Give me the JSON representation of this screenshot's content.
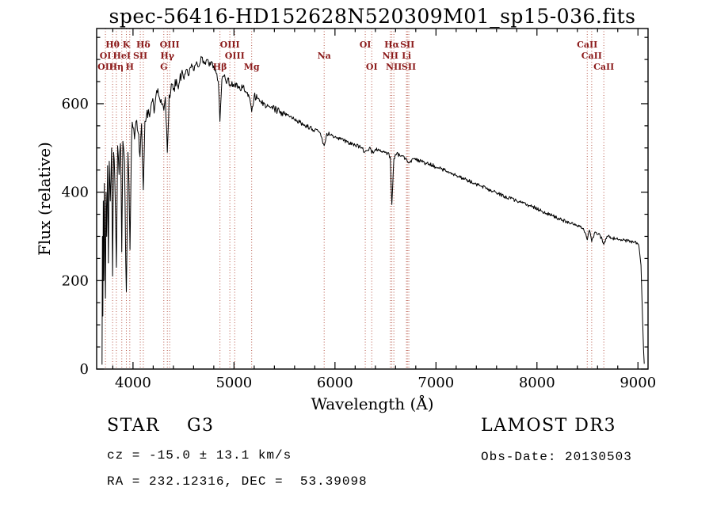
{
  "annotations": {
    "class_label": "STAR    G3",
    "survey": "LAMOST DR3",
    "cz": "cz = -15.0 ± 13.1 km/s",
    "obs_date": "Obs-Date: 20130503",
    "radec": "RA = 232.12316, DEC =  53.39098"
  },
  "colors": {
    "spectrum": "#000000",
    "line_marker": "#b04434",
    "line_label": "#8b1a1a",
    "frame": "#000000",
    "background": "#ffffff"
  },
  "chart_data": {
    "type": "line",
    "title": "spec-56416-HD152628N520309M01_sp15-036.fits",
    "xlabel": "Wavelength (Å)",
    "ylabel": "Flux (relative)",
    "xlim": [
      3640,
      9100
    ],
    "ylim": [
      0,
      770
    ],
    "x_ticks": [
      4000,
      5000,
      6000,
      7000,
      8000,
      9000
    ],
    "y_ticks": [
      0,
      200,
      400,
      600
    ],
    "x_minor_step": 200,
    "y_minor_step": 50,
    "grid": false,
    "legend": "none",
    "series": [
      {
        "name": "flux",
        "points": [
          [
            3693,
            10
          ],
          [
            3697,
            300
          ],
          [
            3701,
            120
          ],
          [
            3706,
            380
          ],
          [
            3711,
            200
          ],
          [
            3716,
            420
          ],
          [
            3722,
            260
          ],
          [
            3727,
            160
          ],
          [
            3733,
            400
          ],
          [
            3740,
            300
          ],
          [
            3748,
            460
          ],
          [
            3756,
            240
          ],
          [
            3765,
            470
          ],
          [
            3775,
            380
          ],
          [
            3788,
            500
          ],
          [
            3798,
            210
          ],
          [
            3808,
            490
          ],
          [
            3820,
            430
          ],
          [
            3835,
            230
          ],
          [
            3848,
            505
          ],
          [
            3862,
            440
          ],
          [
            3876,
            510
          ],
          [
            3889,
            265
          ],
          [
            3900,
            515
          ],
          [
            3916,
            470
          ],
          [
            3934,
            175
          ],
          [
            3950,
            490
          ],
          [
            3960,
            420
          ],
          [
            3970,
            270
          ],
          [
            3985,
            515
          ],
          [
            4000,
            545
          ],
          [
            4015,
            520
          ],
          [
            4030,
            560
          ],
          [
            4050,
            535
          ],
          [
            4069,
            480
          ],
          [
            4085,
            555
          ],
          [
            4102,
            405
          ],
          [
            4118,
            560
          ],
          [
            4140,
            585
          ],
          [
            4165,
            570
          ],
          [
            4190,
            605
          ],
          [
            4215,
            590
          ],
          [
            4240,
            625
          ],
          [
            4265,
            610
          ],
          [
            4290,
            600
          ],
          [
            4305,
            585
          ],
          [
            4320,
            615
          ],
          [
            4340,
            490
          ],
          [
            4358,
            620
          ],
          [
            4380,
            645
          ],
          [
            4405,
            635
          ],
          [
            4430,
            655
          ],
          [
            4455,
            645
          ],
          [
            4480,
            668
          ],
          [
            4505,
            655
          ],
          [
            4530,
            678
          ],
          [
            4555,
            665
          ],
          [
            4580,
            690
          ],
          [
            4605,
            675
          ],
          [
            4630,
            695
          ],
          [
            4655,
            685
          ],
          [
            4680,
            705
          ],
          [
            4705,
            690
          ],
          [
            4730,
            700
          ],
          [
            4755,
            685
          ],
          [
            4780,
            695
          ],
          [
            4805,
            678
          ],
          [
            4830,
            668
          ],
          [
            4845,
            650
          ],
          [
            4861,
            560
          ],
          [
            4880,
            655
          ],
          [
            4900,
            662
          ],
          [
            4920,
            650
          ],
          [
            4940,
            658
          ],
          [
            4959,
            640
          ],
          [
            4980,
            650
          ],
          [
            5000,
            638
          ],
          [
            5030,
            645
          ],
          [
            5060,
            632
          ],
          [
            5090,
            638
          ],
          [
            5120,
            625
          ],
          [
            5150,
            615
          ],
          [
            5175,
            582
          ],
          [
            5200,
            618
          ],
          [
            5230,
            612
          ],
          [
            5260,
            606
          ],
          [
            5300,
            600
          ],
          [
            5350,
            594
          ],
          [
            5400,
            588
          ],
          [
            5450,
            582
          ],
          [
            5500,
            576
          ],
          [
            5550,
            570
          ],
          [
            5600,
            564
          ],
          [
            5650,
            558
          ],
          [
            5700,
            552
          ],
          [
            5750,
            546
          ],
          [
            5800,
            540
          ],
          [
            5850,
            535
          ],
          [
            5893,
            505
          ],
          [
            5920,
            533
          ],
          [
            5960,
            529
          ],
          [
            6000,
            525
          ],
          [
            6060,
            519
          ],
          [
            6120,
            513
          ],
          [
            6180,
            508
          ],
          [
            6240,
            503
          ],
          [
            6300,
            492
          ],
          [
            6340,
            500
          ],
          [
            6364,
            488
          ],
          [
            6400,
            497
          ],
          [
            6460,
            492
          ],
          [
            6520,
            488
          ],
          [
            6548,
            480
          ],
          [
            6563,
            372
          ],
          [
            6583,
            476
          ],
          [
            6610,
            486
          ],
          [
            6660,
            483
          ],
          [
            6708,
            474
          ],
          [
            6717,
            470
          ],
          [
            6731,
            466
          ],
          [
            6780,
            476
          ],
          [
            6840,
            471
          ],
          [
            6900,
            466
          ],
          [
            6960,
            461
          ],
          [
            7020,
            456
          ],
          [
            7080,
            450
          ],
          [
            7140,
            444
          ],
          [
            7200,
            438
          ],
          [
            7260,
            432
          ],
          [
            7320,
            426
          ],
          [
            7380,
            420
          ],
          [
            7440,
            414
          ],
          [
            7500,
            408
          ],
          [
            7560,
            402
          ],
          [
            7620,
            396
          ],
          [
            7680,
            390
          ],
          [
            7740,
            385
          ],
          [
            7800,
            380
          ],
          [
            7860,
            375
          ],
          [
            7920,
            370
          ],
          [
            7980,
            365
          ],
          [
            8040,
            358
          ],
          [
            8100,
            352
          ],
          [
            8160,
            346
          ],
          [
            8220,
            340
          ],
          [
            8280,
            334
          ],
          [
            8340,
            329
          ],
          [
            8400,
            324
          ],
          [
            8460,
            318
          ],
          [
            8498,
            292
          ],
          [
            8520,
            314
          ],
          [
            8542,
            288
          ],
          [
            8575,
            310
          ],
          [
            8620,
            305
          ],
          [
            8662,
            282
          ],
          [
            8700,
            300
          ],
          [
            8750,
            296
          ],
          [
            8800,
            293
          ],
          [
            8850,
            291
          ],
          [
            8900,
            289
          ],
          [
            8950,
            288
          ],
          [
            8990,
            286
          ],
          [
            9010,
            278
          ],
          [
            9030,
            235
          ],
          [
            9045,
            120
          ],
          [
            9055,
            45
          ],
          [
            9062,
            12
          ]
        ]
      }
    ],
    "spectral_lines": {
      "wavelengths": [
        3727,
        3798,
        3835,
        3889,
        3934,
        3968,
        4072,
        4102,
        4305,
        4340,
        4363,
        4861,
        4959,
        5007,
        5175,
        5893,
        6300,
        6364,
        6548,
        6563,
        6583,
        6708,
        6717,
        6731,
        8498,
        8542,
        8662
      ],
      "labels": [
        {
          "text": "Hθ",
          "wavelength": 3798,
          "row": 1
        },
        {
          "text": "K",
          "wavelength": 3934,
          "row": 1
        },
        {
          "text": "Hδ",
          "wavelength": 4102,
          "row": 1
        },
        {
          "text": "OIII",
          "wavelength": 4363,
          "row": 1
        },
        {
          "text": "OIII",
          "wavelength": 4959,
          "row": 1
        },
        {
          "text": "OI",
          "wavelength": 6300,
          "row": 1
        },
        {
          "text": "Hα",
          "wavelength": 6563,
          "row": 1
        },
        {
          "text": "SII",
          "wavelength": 6717,
          "row": 1
        },
        {
          "text": "CaII",
          "wavelength": 8498,
          "row": 1
        },
        {
          "text": "OI",
          "wavelength": 3727,
          "row": 2
        },
        {
          "text": "HeI",
          "wavelength": 3889,
          "row": 2
        },
        {
          "text": "SII",
          "wavelength": 4072,
          "row": 2
        },
        {
          "text": "Hγ",
          "wavelength": 4340,
          "row": 2
        },
        {
          "text": "OIII",
          "wavelength": 5007,
          "row": 2
        },
        {
          "text": "Na",
          "wavelength": 5893,
          "row": 2
        },
        {
          "text": "NII",
          "wavelength": 6548,
          "row": 2
        },
        {
          "text": "Li",
          "wavelength": 6708,
          "row": 2
        },
        {
          "text": "CaII",
          "wavelength": 8542,
          "row": 2
        },
        {
          "text": "OII",
          "wavelength": 3727,
          "row": 3
        },
        {
          "text": "Hη",
          "wavelength": 3835,
          "row": 3
        },
        {
          "text": "H",
          "wavelength": 3968,
          "row": 3
        },
        {
          "text": "G",
          "wavelength": 4305,
          "row": 3
        },
        {
          "text": "Hβ",
          "wavelength": 4861,
          "row": 3
        },
        {
          "text": "Mg",
          "wavelength": 5175,
          "row": 3
        },
        {
          "text": "OI",
          "wavelength": 6364,
          "row": 3
        },
        {
          "text": "NII",
          "wavelength": 6583,
          "row": 3
        },
        {
          "text": "SII",
          "wavelength": 6731,
          "row": 3
        },
        {
          "text": "CaII",
          "wavelength": 8662,
          "row": 3
        }
      ]
    },
    "noise": {
      "seed": 13,
      "step": 6,
      "amps": [
        [
          4000,
          30
        ],
        [
          4500,
          16
        ],
        [
          5500,
          8
        ],
        [
          7000,
          5
        ],
        [
          9999,
          4
        ]
      ]
    }
  }
}
